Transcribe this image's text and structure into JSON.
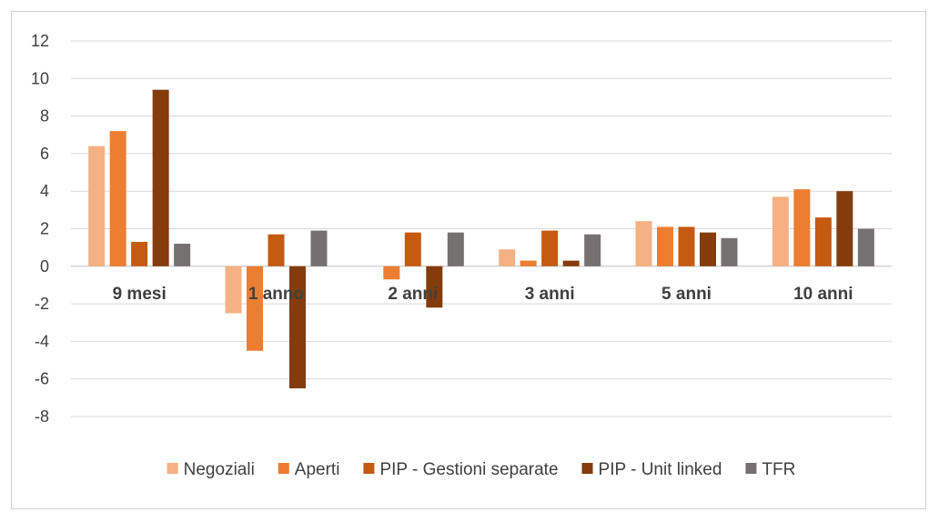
{
  "chart_data": {
    "type": "bar",
    "categories": [
      "9 mesi",
      "1 anno",
      "2 anni",
      "3 anni",
      "5 anni",
      "10 anni"
    ],
    "series": [
      {
        "name": "Negoziali",
        "color": "#f4b183",
        "values": [
          6.4,
          -2.5,
          0,
          0.9,
          2.4,
          3.7
        ]
      },
      {
        "name": "Aperti",
        "color": "#ed7d31",
        "values": [
          7.2,
          -4.5,
          -0.7,
          0.3,
          2.1,
          4.1
        ]
      },
      {
        "name": "PIP - Gestioni separate",
        "color": "#c55a11",
        "values": [
          1.3,
          1.7,
          1.8,
          1.9,
          2.1,
          2.6
        ]
      },
      {
        "name": "PIP - Unit linked",
        "color": "#843c0c",
        "values": [
          9.4,
          -6.5,
          -2.2,
          0.3,
          1.8,
          4.0
        ]
      },
      {
        "name": "TFR",
        "color": "#767171",
        "values": [
          1.2,
          1.9,
          1.8,
          1.7,
          1.5,
          2.0
        ]
      }
    ],
    "yticks": [
      12,
      10,
      8,
      6,
      4,
      2,
      0,
      -2,
      -4,
      -6,
      -8
    ],
    "ylim": [
      -8,
      12
    ],
    "grid": true,
    "legend_position": "bottom"
  }
}
